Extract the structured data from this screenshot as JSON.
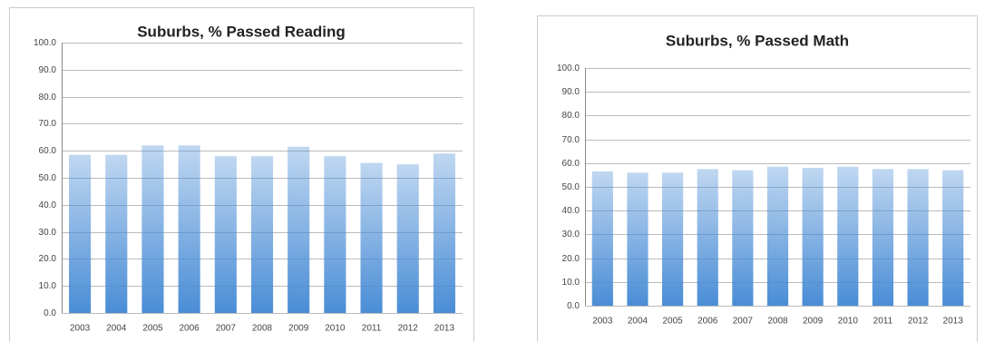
{
  "chart_data": [
    {
      "type": "bar",
      "title": "Suburbs, % Passed Reading",
      "categories": [
        "2003",
        "2004",
        "2005",
        "2006",
        "2007",
        "2008",
        "2009",
        "2010",
        "2011",
        "2012",
        "2013"
      ],
      "values": [
        58.5,
        58.5,
        62,
        62,
        58,
        58,
        61.5,
        58,
        55.5,
        55,
        59
      ],
      "color": "#4a8dd6",
      "ylim": [
        0,
        100
      ],
      "yticks": [
        {
          "value": 0,
          "label": "0.0"
        },
        {
          "value": 10,
          "label": "10.0"
        },
        {
          "value": 20,
          "label": "20.0"
        },
        {
          "value": 30,
          "label": "30.0"
        },
        {
          "value": 40,
          "label": "40.0"
        },
        {
          "value": 50,
          "label": "50.0"
        },
        {
          "value": 60,
          "label": "60.0"
        },
        {
          "value": 70,
          "label": "70.0"
        },
        {
          "value": 80,
          "label": "80.0"
        },
        {
          "value": 90,
          "label": "90.0"
        },
        {
          "value": 100,
          "label": "100.0"
        }
      ],
      "grid": true
    },
    {
      "type": "bar",
      "title": "Suburbs, % Passed Math",
      "categories": [
        "2003",
        "2004",
        "2005",
        "2006",
        "2007",
        "2008",
        "2009",
        "2010",
        "2011",
        "2012",
        "2013"
      ],
      "values": [
        56.5,
        56,
        56,
        57.5,
        57,
        58.5,
        58,
        58.5,
        57.5,
        57.5,
        57
      ],
      "color": "#4a8dd6",
      "ylim": [
        0,
        100
      ],
      "yticks": [
        {
          "value": 0,
          "label": "0.0"
        },
        {
          "value": 10,
          "label": "10.0"
        },
        {
          "value": 20,
          "label": "20.0"
        },
        {
          "value": 30,
          "label": "30.0"
        },
        {
          "value": 40,
          "label": "40.0"
        },
        {
          "value": 50,
          "label": "50.0"
        },
        {
          "value": 60,
          "label": "60.0"
        },
        {
          "value": 70,
          "label": "70.0"
        },
        {
          "value": 80,
          "label": "80.0"
        },
        {
          "value": 90,
          "label": "90.0"
        },
        {
          "value": 100,
          "label": "100.0"
        }
      ],
      "grid": true
    }
  ]
}
